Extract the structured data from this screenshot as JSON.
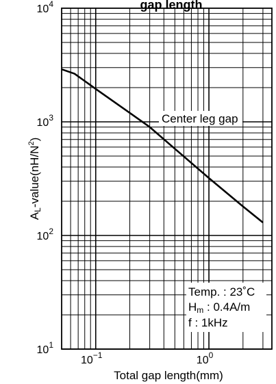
{
  "chart_data": {
    "type": "line",
    "title": "gap length",
    "xlabel": "Total gap length(mm)",
    "ylabel_prefix": "A",
    "ylabel_sub": "L",
    "ylabel_rest": "-value(nH/N",
    "ylabel_sup": "2",
    "ylabel_close": ")",
    "xscale": "log",
    "yscale": "log",
    "xlim": [
      0.05,
      3.6
    ],
    "ylim": [
      10,
      10000
    ],
    "grid": true,
    "xticks": [
      {
        "value": 0.1,
        "base": "10",
        "exp": "−1"
      },
      {
        "value": 1,
        "base": "10",
        "exp": "0"
      }
    ],
    "yticks": [
      {
        "value": 10,
        "base": "10",
        "exp": "1"
      },
      {
        "value": 100,
        "base": "10",
        "exp": "2"
      },
      {
        "value": 1000,
        "base": "10",
        "exp": "3"
      },
      {
        "value": 10000,
        "base": "10",
        "exp": "4"
      }
    ],
    "series": [
      {
        "name": "Center leg gap",
        "x": [
          0.05,
          0.065,
          0.1,
          0.2,
          0.3,
          0.5,
          1.0,
          2.0,
          3.0
        ],
        "y": [
          2900,
          2650,
          1950,
          1200,
          900,
          580,
          320,
          180,
          130
        ]
      }
    ],
    "conditions": {
      "temp_label": "Temp. : 23˚C",
      "hm_main": "H",
      "hm_sub": "m",
      "hm_rest": " : 0.4A/m",
      "freq_label": "f : 1kHz"
    }
  }
}
